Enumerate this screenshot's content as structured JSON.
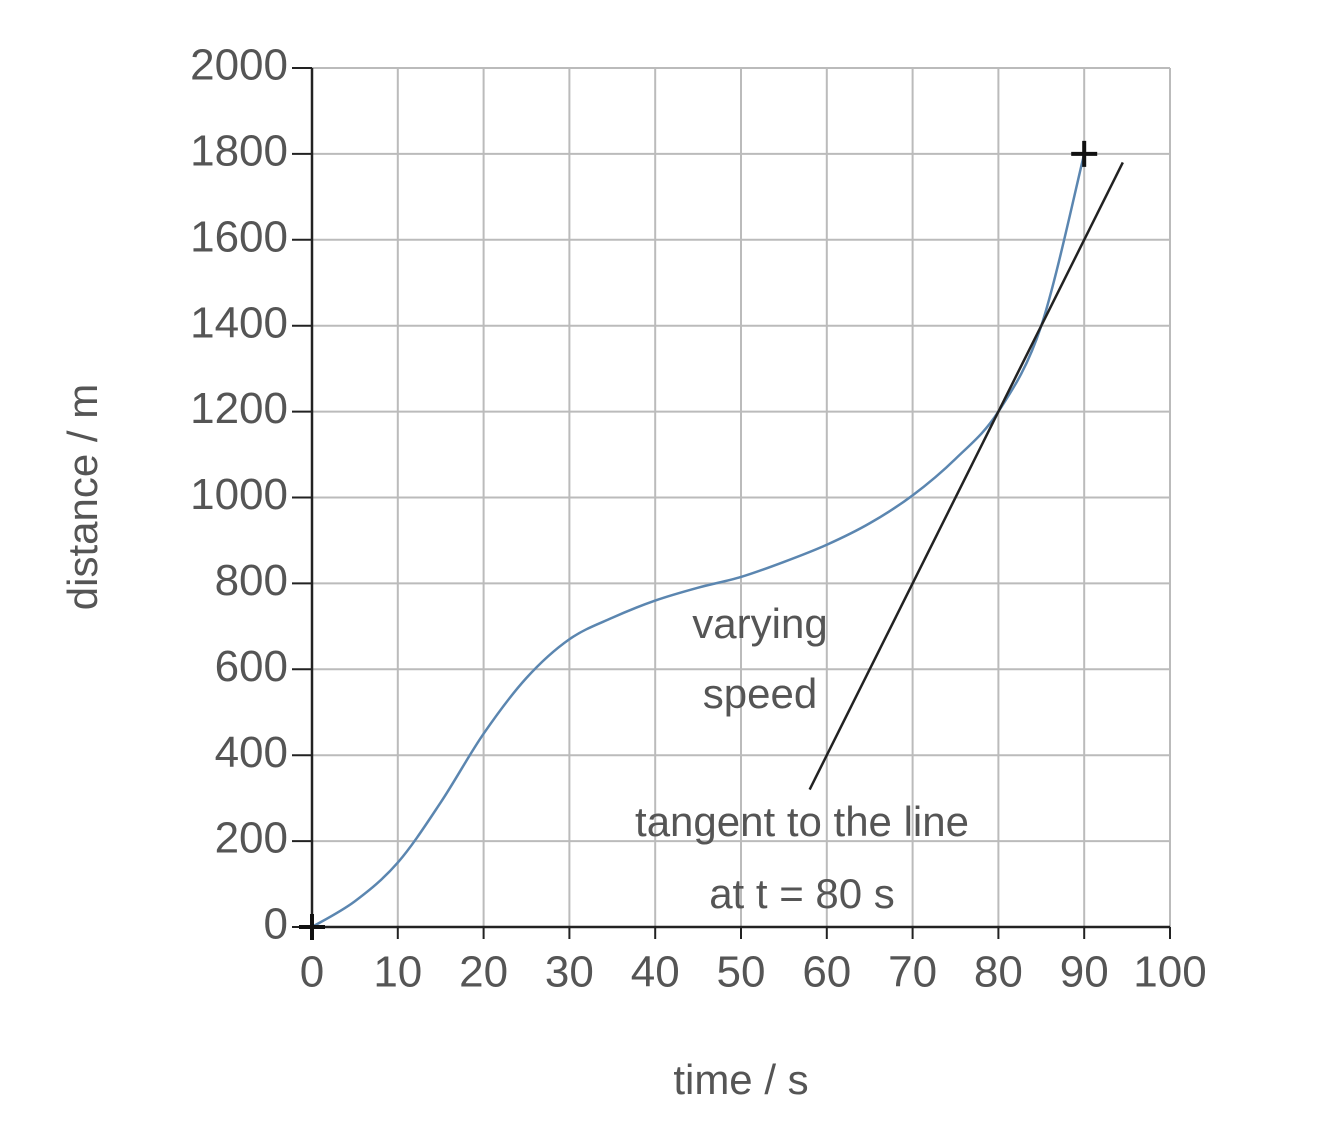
{
  "chart_data": {
    "type": "line",
    "x_label": "time / s",
    "y_label": "distance / m",
    "xlim": [
      0,
      100
    ],
    "ylim": [
      0,
      2000
    ],
    "xticks": [
      0,
      10,
      20,
      30,
      40,
      50,
      60,
      70,
      80,
      90,
      100
    ],
    "yticks": [
      0,
      200,
      400,
      600,
      800,
      1000,
      1200,
      1400,
      1600,
      1800,
      2000
    ],
    "grid": true,
    "series": [
      {
        "color": "#5b86b0",
        "x": [
          0,
          5,
          10,
          15,
          20,
          25,
          30,
          35,
          40,
          45,
          50,
          55,
          60,
          65,
          70,
          75,
          80,
          85,
          90
        ],
        "values": [
          0,
          60,
          150,
          290,
          450,
          580,
          670,
          720,
          760,
          790,
          815,
          850,
          890,
          940,
          1005,
          1090,
          1200,
          1400,
          1800
        ]
      },
      {
        "color": "#222222",
        "x": [
          58,
          94.5
        ],
        "values": [
          320,
          1780
        ]
      }
    ],
    "markers": {
      "x": [
        0,
        90
      ],
      "values": [
        0,
        1800
      ]
    },
    "annotations": [
      "varying",
      "speed",
      "tangent to the line",
      "at t = 80 s"
    ]
  }
}
